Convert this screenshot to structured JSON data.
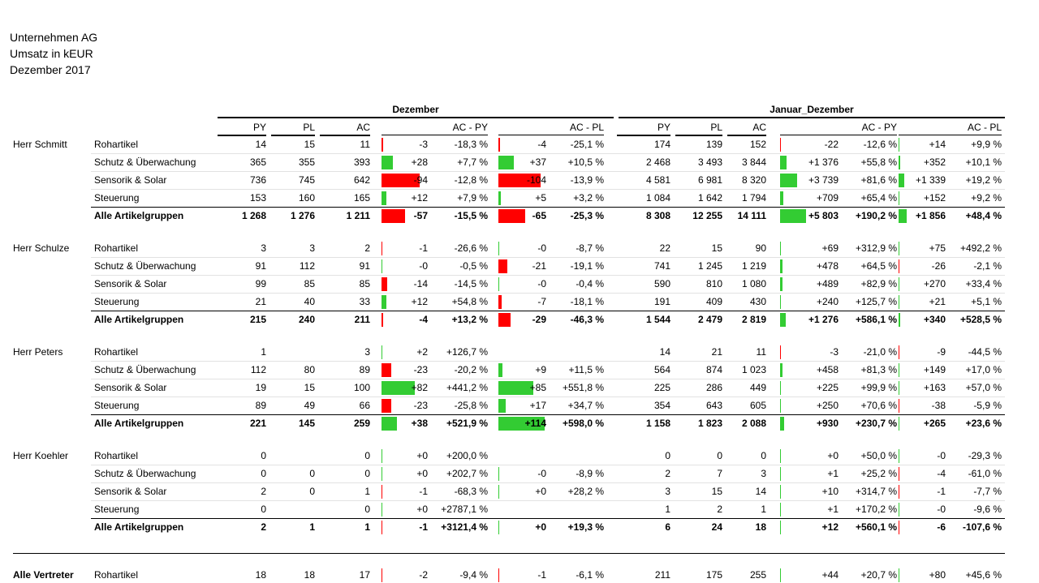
{
  "header": {
    "company": "Unternehmen AG",
    "measure": "Umsatz in kEUR",
    "period": "Dezember 2017"
  },
  "sections": {
    "month": "Dezember",
    "ytd": "Januar_Dezember"
  },
  "columns": {
    "py": "PY",
    "pl": "PL",
    "ac": "AC",
    "ac_py": "AC - PY",
    "ac_pl": "AC - PL"
  },
  "colors": {
    "positive": "#33cc33",
    "negative": "#ff0000"
  },
  "groups": [
    {
      "name": "Herr Schmitt",
      "rows": [
        {
          "label": "Rohartikel",
          "total": false,
          "m": {
            "py": "14",
            "pl": "15",
            "ac": "11",
            "dpy": "-3",
            "dpyp": "-18,3 %",
            "dpl": "-4",
            "dplp": "-25,1 %",
            "dpy_v": -3,
            "dpl_v": -4
          },
          "y": {
            "py": "174",
            "pl": "139",
            "ac": "152",
            "dpy": "-22",
            "dpyp": "-12,6 %",
            "dpl": "+14",
            "dplp": "+9,9 %",
            "dpy_v": -22,
            "dpl_v": 14
          }
        },
        {
          "label": "Schutz & Überwachung",
          "total": false,
          "m": {
            "py": "365",
            "pl": "355",
            "ac": "393",
            "dpy": "+28",
            "dpyp": "+7,7 %",
            "dpl": "+37",
            "dplp": "+10,5 %",
            "dpy_v": 28,
            "dpl_v": 37
          },
          "y": {
            "py": "2 468",
            "pl": "3 493",
            "ac": "3 844",
            "dpy": "+1 376",
            "dpyp": "+55,8 %",
            "dpl": "+352",
            "dplp": "+10,1 %",
            "dpy_v": 1376,
            "dpl_v": 352
          }
        },
        {
          "label": "Sensorik & Solar",
          "total": false,
          "m": {
            "py": "736",
            "pl": "745",
            "ac": "642",
            "dpy": "-94",
            "dpyp": "-12,8 %",
            "dpl": "-104",
            "dplp": "-13,9 %",
            "dpy_v": -94,
            "dpl_v": -104
          },
          "y": {
            "py": "4 581",
            "pl": "6 981",
            "ac": "8 320",
            "dpy": "+3 739",
            "dpyp": "+81,6 %",
            "dpl": "+1 339",
            "dplp": "+19,2 %",
            "dpy_v": 3739,
            "dpl_v": 1339
          }
        },
        {
          "label": "Steuerung",
          "total": false,
          "m": {
            "py": "153",
            "pl": "160",
            "ac": "165",
            "dpy": "+12",
            "dpyp": "+7,9 %",
            "dpl": "+5",
            "dplp": "+3,2 %",
            "dpy_v": 12,
            "dpl_v": 5
          },
          "y": {
            "py": "1 084",
            "pl": "1 642",
            "ac": "1 794",
            "dpy": "+709",
            "dpyp": "+65,4 %",
            "dpl": "+152",
            "dplp": "+9,2 %",
            "dpy_v": 709,
            "dpl_v": 152
          }
        },
        {
          "label": "Alle Artikelgruppen",
          "total": true,
          "m": {
            "py": "1 268",
            "pl": "1 276",
            "ac": "1 211",
            "dpy": "-57",
            "dpyp": "-15,5 %",
            "dpl": "-65",
            "dplp": "-25,3 %",
            "dpy_v": -57,
            "dpl_v": -65
          },
          "y": {
            "py": "8 308",
            "pl": "12 255",
            "ac": "14 111",
            "dpy": "+5 803",
            "dpyp": "+190,2 %",
            "dpl": "+1 856",
            "dplp": "+48,4 %",
            "dpy_v": 5803,
            "dpl_v": 1856
          }
        }
      ]
    },
    {
      "name": "Herr Schulze",
      "rows": [
        {
          "label": "Rohartikel",
          "total": false,
          "m": {
            "py": "3",
            "pl": "3",
            "ac": "2",
            "dpy": "-1",
            "dpyp": "-26,6 %",
            "dpl": "-0",
            "dplp": "-8,7 %",
            "dpy_v": -1,
            "dpl_v": 0
          },
          "y": {
            "py": "22",
            "pl": "15",
            "ac": "90",
            "dpy": "+69",
            "dpyp": "+312,9 %",
            "dpl": "+75",
            "dplp": "+492,2 %",
            "dpy_v": 69,
            "dpl_v": 75
          }
        },
        {
          "label": "Schutz & Überwachung",
          "total": false,
          "m": {
            "py": "91",
            "pl": "112",
            "ac": "91",
            "dpy": "-0",
            "dpyp": "-0,5 %",
            "dpl": "-21",
            "dplp": "-19,1 %",
            "dpy_v": 0,
            "dpl_v": -21
          },
          "y": {
            "py": "741",
            "pl": "1 245",
            "ac": "1 219",
            "dpy": "+478",
            "dpyp": "+64,5 %",
            "dpl": "-26",
            "dplp": "-2,1 %",
            "dpy_v": 478,
            "dpl_v": -26
          }
        },
        {
          "label": "Sensorik & Solar",
          "total": false,
          "m": {
            "py": "99",
            "pl": "85",
            "ac": "85",
            "dpy": "-14",
            "dpyp": "-14,5 %",
            "dpl": "-0",
            "dplp": "-0,4 %",
            "dpy_v": -14,
            "dpl_v": 0
          },
          "y": {
            "py": "590",
            "pl": "810",
            "ac": "1 080",
            "dpy": "+489",
            "dpyp": "+82,9 %",
            "dpl": "+270",
            "dplp": "+33,4 %",
            "dpy_v": 489,
            "dpl_v": 270
          }
        },
        {
          "label": "Steuerung",
          "total": false,
          "m": {
            "py": "21",
            "pl": "40",
            "ac": "33",
            "dpy": "+12",
            "dpyp": "+54,8 %",
            "dpl": "-7",
            "dplp": "-18,1 %",
            "dpy_v": 12,
            "dpl_v": -7
          },
          "y": {
            "py": "191",
            "pl": "409",
            "ac": "430",
            "dpy": "+240",
            "dpyp": "+125,7 %",
            "dpl": "+21",
            "dplp": "+5,1 %",
            "dpy_v": 240,
            "dpl_v": 21
          }
        },
        {
          "label": "Alle Artikelgruppen",
          "total": true,
          "m": {
            "py": "215",
            "pl": "240",
            "ac": "211",
            "dpy": "-4",
            "dpyp": "+13,2 %",
            "dpl": "-29",
            "dplp": "-46,3 %",
            "dpy_v": -4,
            "dpl_v": -29
          },
          "y": {
            "py": "1 544",
            "pl": "2 479",
            "ac": "2 819",
            "dpy": "+1 276",
            "dpyp": "+586,1 %",
            "dpl": "+340",
            "dplp": "+528,5 %",
            "dpy_v": 1276,
            "dpl_v": 340
          }
        }
      ]
    },
    {
      "name": "Herr Peters",
      "rows": [
        {
          "label": "Rohartikel",
          "total": false,
          "m": {
            "py": "1",
            "pl": "",
            "ac": "3",
            "dpy": "+2",
            "dpyp": "+126,7 %",
            "dpl": "",
            "dplp": "",
            "dpy_v": 2,
            "dpl_v": 0
          },
          "y": {
            "py": "14",
            "pl": "21",
            "ac": "11",
            "dpy": "-3",
            "dpyp": "-21,0 %",
            "dpl": "-9",
            "dplp": "-44,5 %",
            "dpy_v": -3,
            "dpl_v": -9
          }
        },
        {
          "label": "Schutz & Überwachung",
          "total": false,
          "m": {
            "py": "112",
            "pl": "80",
            "ac": "89",
            "dpy": "-23",
            "dpyp": "-20,2 %",
            "dpl": "+9",
            "dplp": "+11,5 %",
            "dpy_v": -23,
            "dpl_v": 9
          },
          "y": {
            "py": "564",
            "pl": "874",
            "ac": "1 023",
            "dpy": "+458",
            "dpyp": "+81,3 %",
            "dpl": "+149",
            "dplp": "+17,0 %",
            "dpy_v": 458,
            "dpl_v": 149
          }
        },
        {
          "label": "Sensorik & Solar",
          "total": false,
          "m": {
            "py": "19",
            "pl": "15",
            "ac": "100",
            "dpy": "+82",
            "dpyp": "+441,2 %",
            "dpl": "+85",
            "dplp": "+551,8 %",
            "dpy_v": 82,
            "dpl_v": 85
          },
          "y": {
            "py": "225",
            "pl": "286",
            "ac": "449",
            "dpy": "+225",
            "dpyp": "+99,9 %",
            "dpl": "+163",
            "dplp": "+57,0 %",
            "dpy_v": 225,
            "dpl_v": 163
          }
        },
        {
          "label": "Steuerung",
          "total": false,
          "m": {
            "py": "89",
            "pl": "49",
            "ac": "66",
            "dpy": "-23",
            "dpyp": "-25,8 %",
            "dpl": "+17",
            "dplp": "+34,7 %",
            "dpy_v": -23,
            "dpl_v": 17
          },
          "y": {
            "py": "354",
            "pl": "643",
            "ac": "605",
            "dpy": "+250",
            "dpyp": "+70,6 %",
            "dpl": "-38",
            "dplp": "-5,9 %",
            "dpy_v": 250,
            "dpl_v": -38
          }
        },
        {
          "label": "Alle Artikelgruppen",
          "total": true,
          "m": {
            "py": "221",
            "pl": "145",
            "ac": "259",
            "dpy": "+38",
            "dpyp": "+521,9 %",
            "dpl": "+114",
            "dplp": "+598,0 %",
            "dpy_v": 38,
            "dpl_v": 114
          },
          "y": {
            "py": "1 158",
            "pl": "1 823",
            "ac": "2 088",
            "dpy": "+930",
            "dpyp": "+230,7 %",
            "dpl": "+265",
            "dplp": "+23,6 %",
            "dpy_v": 930,
            "dpl_v": 265
          }
        }
      ]
    },
    {
      "name": "Herr Koehler",
      "rows": [
        {
          "label": "Rohartikel",
          "total": false,
          "m": {
            "py": "0",
            "pl": "",
            "ac": "0",
            "dpy": "+0",
            "dpyp": "+200,0 %",
            "dpl": "",
            "dplp": "",
            "dpy_v": 0,
            "dpl_v": 0
          },
          "y": {
            "py": "0",
            "pl": "0",
            "ac": "0",
            "dpy": "+0",
            "dpyp": "+50,0 %",
            "dpl": "-0",
            "dplp": "-29,3 %",
            "dpy_v": 0,
            "dpl_v": 0
          }
        },
        {
          "label": "Schutz & Überwachung",
          "total": false,
          "m": {
            "py": "0",
            "pl": "0",
            "ac": "0",
            "dpy": "+0",
            "dpyp": "+202,7 %",
            "dpl": "-0",
            "dplp": "-8,9 %",
            "dpy_v": 0,
            "dpl_v": 0
          },
          "y": {
            "py": "2",
            "pl": "7",
            "ac": "3",
            "dpy": "+1",
            "dpyp": "+25,2 %",
            "dpl": "-4",
            "dplp": "-61,0 %",
            "dpy_v": 1,
            "dpl_v": -4
          }
        },
        {
          "label": "Sensorik & Solar",
          "total": false,
          "m": {
            "py": "2",
            "pl": "0",
            "ac": "1",
            "dpy": "-1",
            "dpyp": "-68,3 %",
            "dpl": "+0",
            "dplp": "+28,2 %",
            "dpy_v": -1,
            "dpl_v": 0
          },
          "y": {
            "py": "3",
            "pl": "15",
            "ac": "14",
            "dpy": "+10",
            "dpyp": "+314,7 %",
            "dpl": "-1",
            "dplp": "-7,7 %",
            "dpy_v": 10,
            "dpl_v": -1
          }
        },
        {
          "label": "Steuerung",
          "total": false,
          "m": {
            "py": "0",
            "pl": "",
            "ac": "0",
            "dpy": "+0",
            "dpyp": "+2787,1 %",
            "dpl": "",
            "dplp": "",
            "dpy_v": 0,
            "dpl_v": 0
          },
          "y": {
            "py": "1",
            "pl": "2",
            "ac": "1",
            "dpy": "+1",
            "dpyp": "+170,2 %",
            "dpl": "-0",
            "dplp": "-9,6 %",
            "dpy_v": 1,
            "dpl_v": 0
          }
        },
        {
          "label": "Alle Artikelgruppen",
          "total": true,
          "m": {
            "py": "2",
            "pl": "1",
            "ac": "1",
            "dpy": "-1",
            "dpyp": "+3121,4 %",
            "dpl": "+0",
            "dplp": "+19,3 %",
            "dpy_v": -1,
            "dpl_v": 0
          },
          "y": {
            "py": "6",
            "pl": "24",
            "ac": "18",
            "dpy": "+12",
            "dpyp": "+560,1 %",
            "dpl": "-6",
            "dplp": "-107,6 %",
            "dpy_v": 12,
            "dpl_v": -6
          }
        }
      ]
    },
    {
      "name": "Alle Vertreter",
      "bold_name": true,
      "rows": [
        {
          "label": "Rohartikel",
          "total": false,
          "m": {
            "py": "18",
            "pl": "18",
            "ac": "17",
            "dpy": "-2",
            "dpyp": "-9,4 %",
            "dpl": "-1",
            "dplp": "-6,1 %",
            "dpy_v": -2,
            "dpl_v": -1
          },
          "y": {
            "py": "211",
            "pl": "175",
            "ac": "255",
            "dpy": "+44",
            "dpyp": "+20,7 %",
            "dpl": "+80",
            "dplp": "+45,6 %",
            "dpy_v": 44,
            "dpl_v": 80
          }
        }
      ]
    }
  ]
}
